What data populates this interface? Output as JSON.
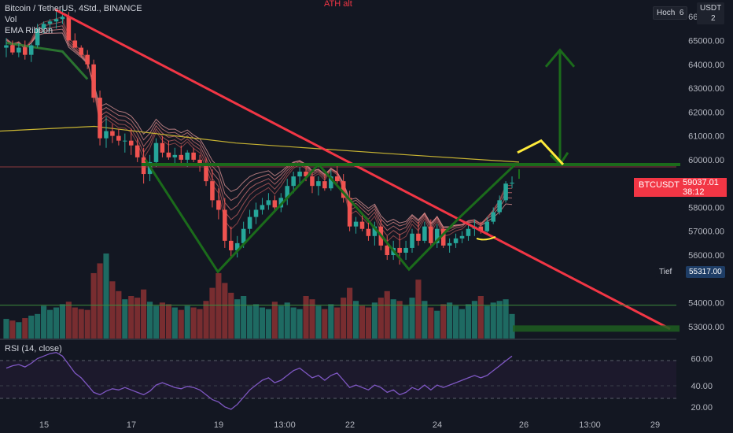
{
  "header": {
    "symbol_title": "Bitcoin / TetherUS, 4Std., BINANCE",
    "indicator_vol": "Vol",
    "indicator_ema": "EMA Ribbon",
    "currency": "USDT",
    "hoch_label": "Hoch",
    "hoch_value_partial": "6",
    "hoch_value_partial_2": "2",
    "ath_label": "ATH alt"
  },
  "price_axis": {
    "ticks": [
      "66000.00",
      "65000.00",
      "64000.00",
      "63000.00",
      "62000.00",
      "61000.00",
      "60000.00",
      "58000.00",
      "57000.00",
      "56000.00",
      "55317.00",
      "54000.00",
      "53000.00"
    ]
  },
  "current_price": {
    "symbol": "BTCUSDT",
    "value": "59037.01",
    "countdown": "38:12"
  },
  "tief": {
    "label": "Tief",
    "value": "55317.00"
  },
  "rsi": {
    "title": "RSI (14, close)",
    "ticks": [
      "60.00",
      "40.00",
      "20.00"
    ]
  },
  "time_axis": {
    "labels": [
      "15",
      "17",
      "19",
      "13:00",
      "22",
      "24",
      "26",
      "13:00",
      "29"
    ]
  },
  "colors": {
    "background": "#131722",
    "up": "#26a69a",
    "down": "#ef5350",
    "trendline": "#f23645",
    "pattern": "#1b6b1b",
    "highlight": "#ffeb3b",
    "ema200": "#c8b432",
    "rsi_line": "#7e57c2"
  },
  "chart_data": {
    "type": "candlestick",
    "title": "Bitcoin / TetherUS, 4Std., BINANCE",
    "price_range": [
      52500,
      66700
    ],
    "rsi_range": [
      14,
      70
    ],
    "candles_ohlc": [
      [
        64700,
        65100,
        64300,
        64800
      ],
      [
        64800,
        65000,
        64400,
        64500
      ],
      [
        64500,
        64900,
        64300,
        64700
      ],
      [
        64700,
        65000,
        64200,
        64400
      ],
      [
        64400,
        64900,
        64100,
        64800
      ],
      [
        64800,
        65700,
        64700,
        65500
      ],
      [
        65500,
        65800,
        65300,
        65700
      ],
      [
        65700,
        65900,
        65400,
        65800
      ],
      [
        65800,
        66300,
        65500,
        65900
      ],
      [
        65900,
        66300,
        65700,
        66000
      ],
      [
        66000,
        66200,
        65200,
        65000
      ],
      [
        65000,
        65300,
        64700,
        64700
      ],
      [
        64700,
        64800,
        64300,
        64400
      ],
      [
        64400,
        64600,
        63800,
        64000
      ],
      [
        64000,
        64200,
        62400,
        62600
      ],
      [
        62600,
        62900,
        60600,
        60900
      ],
      [
        60900,
        61800,
        60500,
        61200
      ],
      [
        61200,
        61500,
        60700,
        61000
      ],
      [
        61000,
        61300,
        60600,
        60800
      ],
      [
        60800,
        61100,
        60300,
        60800
      ],
      [
        60800,
        61300,
        60200,
        60600
      ],
      [
        60600,
        60900,
        59900,
        60100
      ],
      [
        60100,
        60500,
        59000,
        59400
      ],
      [
        59400,
        60200,
        59100,
        59900
      ],
      [
        59900,
        60900,
        59700,
        60700
      ],
      [
        60700,
        61000,
        60100,
        60300
      ],
      [
        60300,
        60800,
        60000,
        60100
      ],
      [
        60100,
        60500,
        59800,
        60200
      ],
      [
        60200,
        60600,
        59800,
        60000
      ],
      [
        60000,
        60400,
        59700,
        60300
      ],
      [
        60300,
        60500,
        59900,
        60000
      ],
      [
        60000,
        60200,
        59500,
        59800
      ],
      [
        59800,
        60100,
        58900,
        59100
      ],
      [
        59100,
        59600,
        58000,
        58300
      ],
      [
        58300,
        58800,
        57500,
        57900
      ],
      [
        57900,
        58400,
        56300,
        56600
      ],
      [
        56600,
        57200,
        55900,
        56200
      ],
      [
        56200,
        56800,
        55900,
        56500
      ],
      [
        56500,
        57400,
        56300,
        57100
      ],
      [
        57100,
        57900,
        56900,
        57600
      ],
      [
        57600,
        58200,
        57300,
        57900
      ],
      [
        57900,
        58400,
        57700,
        58100
      ],
      [
        58100,
        58600,
        57900,
        58300
      ],
      [
        58300,
        58500,
        57800,
        58000
      ],
      [
        58000,
        58600,
        57800,
        58400
      ],
      [
        58400,
        59200,
        58100,
        58900
      ],
      [
        58900,
        59500,
        58600,
        59300
      ],
      [
        59300,
        59700,
        58900,
        59500
      ],
      [
        59500,
        59800,
        59100,
        59300
      ],
      [
        59300,
        59500,
        58600,
        58900
      ],
      [
        58900,
        59300,
        58500,
        59100
      ],
      [
        59100,
        59400,
        58700,
        58800
      ],
      [
        58800,
        59600,
        58700,
        59300
      ],
      [
        59300,
        59800,
        59000,
        59100
      ],
      [
        59100,
        59400,
        58200,
        58400
      ],
      [
        58400,
        58700,
        57000,
        57200
      ],
      [
        57200,
        57600,
        56900,
        57400
      ],
      [
        57400,
        57800,
        57000,
        57100
      ],
      [
        57100,
        57400,
        56600,
        56800
      ],
      [
        56800,
        57400,
        56400,
        57200
      ],
      [
        57200,
        57500,
        56200,
        56400
      ],
      [
        56400,
        56800,
        55800,
        56000
      ],
      [
        56000,
        56600,
        55800,
        56300
      ],
      [
        56300,
        56900,
        55600,
        56100
      ],
      [
        56100,
        56600,
        55800,
        56300
      ],
      [
        56300,
        57100,
        56100,
        56900
      ],
      [
        56900,
        57400,
        56400,
        56600
      ],
      [
        56600,
        57400,
        56500,
        57200
      ],
      [
        57200,
        57500,
        56300,
        56500
      ],
      [
        56500,
        57300,
        56300,
        57100
      ],
      [
        57100,
        57200,
        56300,
        56400
      ],
      [
        56400,
        56700,
        56100,
        56500
      ],
      [
        56500,
        56900,
        56300,
        56700
      ],
      [
        56700,
        57000,
        56500,
        56800
      ],
      [
        56800,
        57300,
        56600,
        57100
      ],
      [
        57100,
        57500,
        56800,
        57200
      ],
      [
        57200,
        57400,
        56900,
        57000
      ],
      [
        57000,
        57600,
        56900,
        57400
      ],
      [
        57400,
        58000,
        57300,
        57800
      ],
      [
        57800,
        58500,
        57700,
        58300
      ],
      [
        58300,
        59100,
        58200,
        59000
      ],
      [
        59000,
        59300,
        58800,
        59037
      ]
    ],
    "volume": [
      24,
      22,
      20,
      25,
      28,
      30,
      40,
      35,
      38,
      42,
      45,
      38,
      36,
      35,
      80,
      92,
      104,
      70,
      58,
      48,
      52,
      50,
      60,
      45,
      40,
      44,
      42,
      38,
      35,
      40,
      38,
      36,
      46,
      62,
      80,
      68,
      56,
      48,
      52,
      40,
      42,
      38,
      36,
      45,
      40,
      44,
      38,
      36,
      52,
      48,
      40,
      36,
      42,
      38,
      50,
      62,
      46,
      40,
      38,
      44,
      50,
      58,
      48,
      46,
      40,
      50,
      72,
      46,
      38,
      34,
      42,
      44,
      40,
      36,
      42,
      46,
      52,
      40,
      44,
      46,
      48,
      30
    ],
    "ema_ribbon_start_end": [
      [
        64500,
        57000
      ],
      [
        64300,
        57300
      ],
      [
        64000,
        57600
      ],
      [
        63700,
        57900
      ],
      [
        63400,
        58200
      ]
    ],
    "ema200": [
      [
        0,
        61200
      ],
      [
        120,
        61400
      ],
      [
        300,
        60700
      ],
      [
        520,
        60200
      ],
      [
        660,
        59900
      ]
    ],
    "rsi": [
      52,
      54,
      55,
      53,
      56,
      60,
      62,
      64,
      65,
      62,
      55,
      48,
      44,
      38,
      32,
      30,
      33,
      35,
      34,
      36,
      34,
      32,
      30,
      33,
      38,
      40,
      38,
      36,
      35,
      37,
      36,
      34,
      30,
      26,
      24,
      20,
      18,
      22,
      28,
      34,
      38,
      42,
      44,
      40,
      42,
      46,
      50,
      52,
      48,
      44,
      46,
      42,
      46,
      48,
      42,
      36,
      38,
      36,
      34,
      38,
      36,
      32,
      34,
      30,
      32,
      36,
      34,
      38,
      34,
      38,
      36,
      38,
      40,
      42,
      44,
      46,
      44,
      46,
      50,
      54,
      58,
      62
    ],
    "annotations": {
      "trendline": "descending red trendline from about 66300 at 15 to about 52900 near 29",
      "resistance_level": 59800,
      "double_bottom": "green W pattern with lows near 55300 and 55400",
      "target_arrow": "green vertical arrow up to about 64600"
    },
    "time_labels": [
      "15",
      "17",
      "19",
      "13:00",
      "22",
      "24",
      "26",
      "13:00",
      "29"
    ]
  }
}
